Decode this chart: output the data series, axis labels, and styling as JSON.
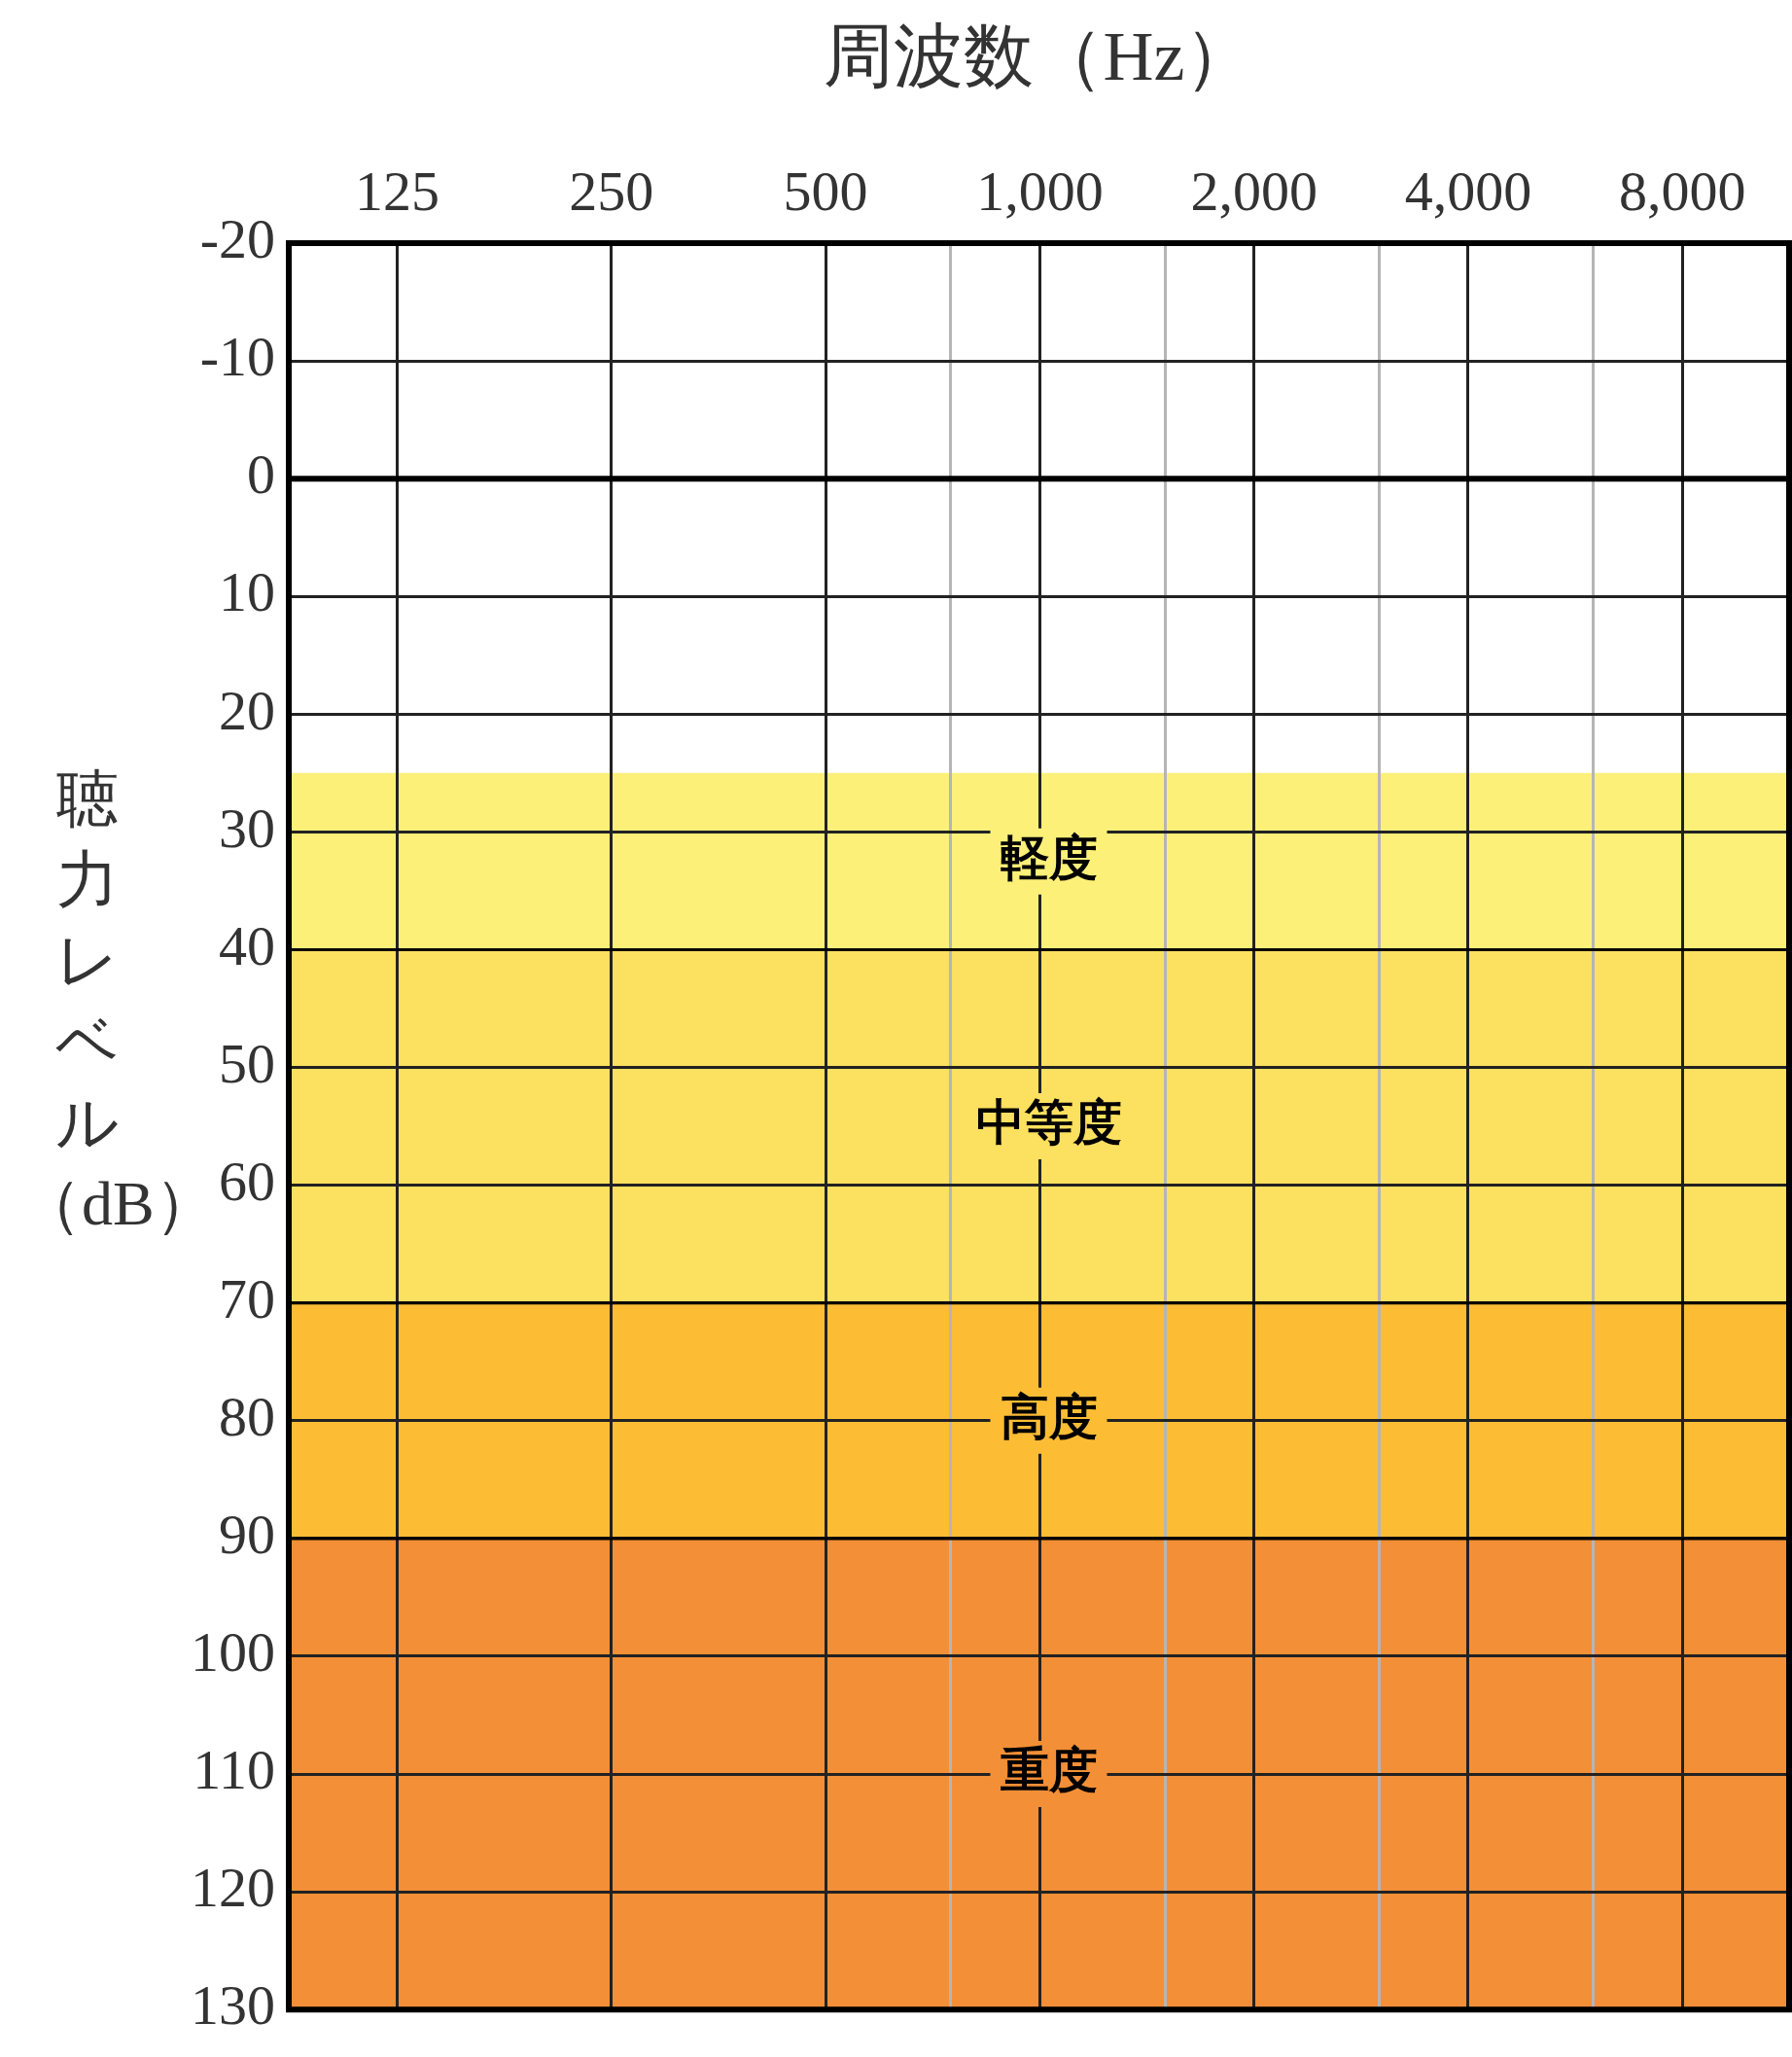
{
  "chart_data": {
    "type": "line",
    "xlabel": "周波数（Hz）",
    "ylabel": "聴力レベル（dB）",
    "log": "x",
    "grid": true,
    "xlim": [
      88,
      11300
    ],
    "xticks": [
      125,
      250,
      500,
      {
        "value": 750,
        "label": null
      },
      {
        "value": 1000,
        "label": "1,000"
      },
      {
        "value": 1500,
        "label": null
      },
      {
        "value": 2000,
        "label": "2,000"
      },
      {
        "value": 3000,
        "label": null
      },
      {
        "value": 4000,
        "label": "4,000"
      },
      {
        "value": 6000,
        "label": null
      },
      {
        "value": 8000,
        "label": "8,000"
      }
    ],
    "ylim": [
      130,
      -20
    ],
    "yticks": [
      -20,
      -10,
      0,
      10,
      20,
      30,
      40,
      50,
      60,
      70,
      80,
      90,
      100,
      110,
      120,
      130
    ],
    "ref_lines": [
      {
        "axis": "y",
        "value": 0
      }
    ],
    "bands": [
      {
        "axis": "y",
        "from": 25,
        "to": 40,
        "label": "軽度",
        "color": "#fdf078"
      },
      {
        "axis": "y",
        "from": 40,
        "to": 70,
        "label": "中等度",
        "color": "#fce05f"
      },
      {
        "axis": "y",
        "from": 70,
        "to": 90,
        "label": "高度",
        "color": "#fcbd35"
      },
      {
        "axis": "y",
        "from": 90,
        "to": 130,
        "label": "重度",
        "color": "#f38f36"
      }
    ]
  }
}
